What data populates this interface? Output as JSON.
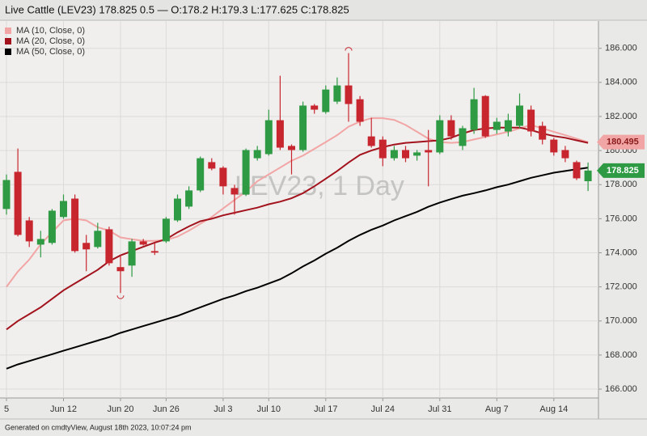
{
  "chart_data": {
    "type": "candlestick",
    "title": "Live Cattle (LEV23) 178.825 0.5 — O:178.2 H:179.3 L:177.625 C:178.825",
    "watermark": "LEV23, 1 Day",
    "footer": "Generated on cmdtyView, August 18th 2023, 10:07:24 pm",
    "categories": [
      "5",
      null,
      null,
      null,
      null,
      "Jun 12",
      null,
      null,
      null,
      null,
      "Jun 20",
      null,
      null,
      null,
      "Jun 26",
      null,
      null,
      null,
      null,
      "Jul 3",
      null,
      null,
      null,
      "Jul 10",
      null,
      null,
      null,
      null,
      "Jul 17",
      null,
      null,
      null,
      null,
      "Jul 24",
      null,
      null,
      null,
      null,
      "Jul 31",
      null,
      null,
      null,
      null,
      "Aug 7",
      null,
      null,
      null,
      null,
      "Aug 14",
      null,
      null,
      null
    ],
    "open": [
      176.57,
      178.75,
      175.9,
      174.48,
      174.58,
      176.1,
      177.18,
      174.58,
      174.34,
      175.38,
      173.16,
      173.25,
      174.67,
      174.1,
      174.67,
      175.9,
      176.71,
      177.66,
      179.32,
      178.99,
      177.8,
      177.42,
      179.55,
      179.79,
      181.78,
      180.27,
      180.03,
      182.64,
      182.26,
      182.87,
      183.82,
      183.01,
      180.83,
      180.64,
      179.55,
      180.03,
      179.7,
      180.03,
      179.89,
      181.78,
      180.27,
      181.21,
      183.2,
      181.21,
      181.12,
      181.45,
      182.4,
      181.45,
      180.64,
      180.03,
      179.32,
      178.2
    ],
    "high": [
      178.6,
      180.12,
      176.1,
      175.29,
      176.57,
      177.42,
      177.42,
      175.05,
      175.76,
      175.53,
      173.87,
      174.81,
      174.81,
      174.58,
      176.1,
      177.42,
      177.9,
      179.65,
      179.55,
      179.08,
      177.99,
      180.12,
      180.27,
      182.4,
      184.39,
      180.36,
      182.87,
      182.73,
      183.82,
      184.29,
      185.72,
      183.2,
      181.92,
      180.83,
      180.27,
      180.27,
      180.03,
      181.21,
      182.07,
      182.07,
      181.45,
      183.68,
      183.25,
      181.92,
      182.16,
      183.35,
      182.64,
      181.69,
      180.74,
      180.27,
      179.41,
      179.3
    ],
    "low": [
      176.24,
      174.96,
      174.34,
      173.73,
      174.48,
      176.0,
      174.01,
      172.92,
      174.25,
      173.25,
      171.64,
      172.59,
      174.43,
      173.87,
      174.58,
      175.81,
      176.57,
      177.56,
      178.84,
      177.42,
      176.24,
      177.33,
      179.41,
      179.7,
      180.03,
      178.6,
      179.93,
      182.16,
      182.16,
      182.73,
      181.69,
      181.45,
      180.17,
      179.08,
      179.41,
      179.32,
      179.41,
      177.9,
      179.79,
      180.64,
      180.03,
      180.98,
      180.74,
      180.98,
      180.83,
      181.31,
      180.83,
      180.36,
      179.7,
      179.32,
      178.27,
      177.625
    ],
    "close": [
      178.27,
      175.05,
      174.67,
      174.81,
      176.47,
      177.04,
      174.1,
      174.2,
      175.29,
      173.39,
      172.92,
      174.67,
      174.48,
      174.01,
      176.0,
      177.18,
      177.66,
      179.55,
      178.94,
      177.9,
      177.42,
      180.03,
      180.03,
      181.78,
      180.17,
      180.03,
      182.64,
      182.4,
      183.58,
      183.82,
      182.73,
      181.69,
      180.27,
      179.55,
      180.03,
      179.55,
      179.89,
      179.89,
      181.78,
      180.83,
      181.31,
      183.01,
      180.83,
      181.69,
      181.78,
      182.64,
      181.12,
      180.64,
      179.89,
      179.55,
      178.37,
      178.825
    ],
    "up_color": "#2e9a44",
    "down_color": "#c8262f",
    "series": [
      {
        "name": "MA (10, Close, 0)",
        "color": "#f2a5a5",
        "values": [
          172.0,
          172.9,
          173.6,
          174.5,
          175.2,
          175.9,
          176.0,
          175.9,
          175.5,
          175.3,
          174.9,
          174.8,
          174.7,
          174.7,
          174.75,
          174.95,
          175.3,
          175.7,
          176.1,
          176.6,
          177.1,
          177.6,
          178.2,
          178.6,
          179.0,
          179.4,
          179.7,
          180.1,
          180.5,
          180.9,
          181.4,
          181.7,
          181.9,
          181.9,
          181.8,
          181.5,
          181.1,
          180.7,
          180.5,
          180.45,
          180.5,
          180.65,
          180.8,
          180.95,
          181.1,
          181.3,
          181.5,
          181.3,
          181.1,
          180.9,
          180.7,
          180.495
        ]
      },
      {
        "name": "MA (20, Close, 0)",
        "color": "#a3131d",
        "values": [
          169.5,
          170.0,
          170.4,
          170.8,
          171.3,
          171.8,
          172.2,
          172.6,
          173.0,
          173.5,
          173.85,
          174.1,
          174.35,
          174.6,
          174.8,
          175.2,
          175.55,
          175.85,
          176.0,
          176.2,
          176.35,
          176.5,
          176.65,
          176.85,
          177.0,
          177.2,
          177.5,
          177.9,
          178.35,
          178.8,
          179.3,
          179.75,
          180.0,
          180.2,
          180.35,
          180.45,
          180.5,
          180.55,
          180.6,
          180.75,
          181.0,
          181.2,
          181.3,
          181.35,
          181.35,
          181.35,
          181.2,
          181.0,
          180.85,
          180.75,
          180.6,
          180.45
        ]
      },
      {
        "name": "MA (50, Close, 0)",
        "color": "#000000",
        "values": [
          167.2,
          167.45,
          167.65,
          167.85,
          168.05,
          168.25,
          168.45,
          168.65,
          168.85,
          169.05,
          169.3,
          169.5,
          169.7,
          169.9,
          170.1,
          170.3,
          170.55,
          170.8,
          171.05,
          171.3,
          171.5,
          171.75,
          171.95,
          172.2,
          172.45,
          172.8,
          173.2,
          173.55,
          173.95,
          174.3,
          174.7,
          175.05,
          175.35,
          175.6,
          175.9,
          176.15,
          176.4,
          176.7,
          176.95,
          177.15,
          177.35,
          177.5,
          177.66,
          177.85,
          178.0,
          178.2,
          178.4,
          178.55,
          178.7,
          178.8,
          178.9,
          179.0
        ]
      }
    ],
    "ylim": [
      165.48,
      187.6
    ],
    "yticks": [
      {
        "value": 166,
        "label": "166.000"
      },
      {
        "value": 168,
        "label": "168.000"
      },
      {
        "value": 170,
        "label": "170.000"
      },
      {
        "value": 172,
        "label": "172.000"
      },
      {
        "value": 174,
        "label": "174.000"
      },
      {
        "value": 176,
        "label": "176.000"
      },
      {
        "value": 178,
        "label": "178.000"
      },
      {
        "value": 180,
        "label": "180.000"
      },
      {
        "value": 182,
        "label": "182.000"
      },
      {
        "value": 184,
        "label": "184.000"
      },
      {
        "value": 186,
        "label": "186.000"
      }
    ],
    "grid": true
  }
}
